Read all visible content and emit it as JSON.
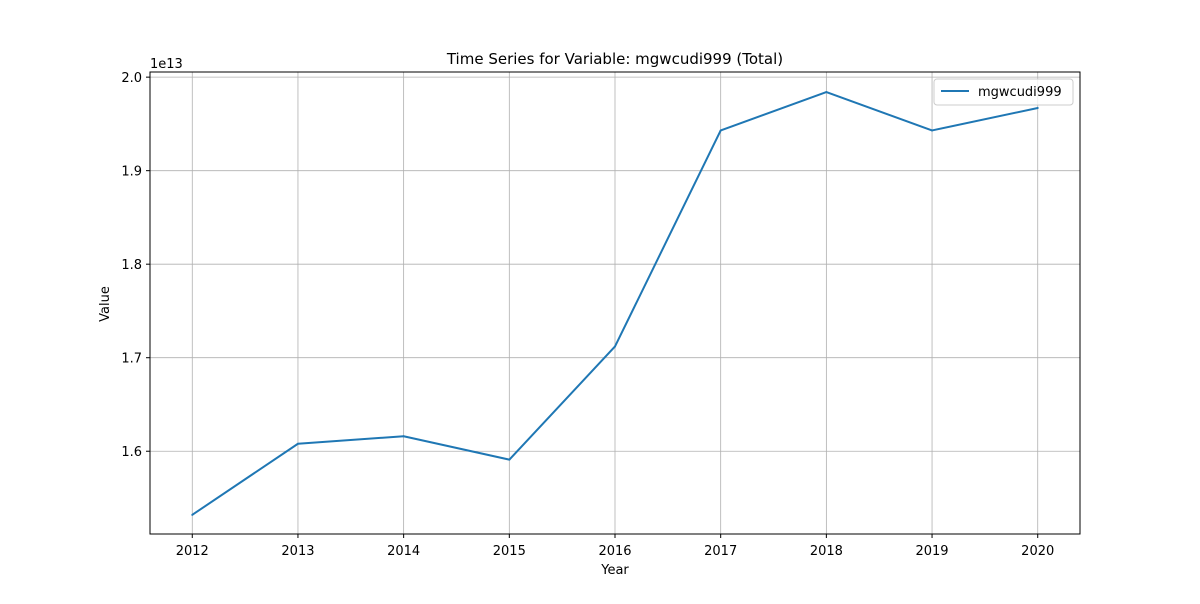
{
  "chart_data": {
    "type": "line",
    "title": "Time Series for Variable: mgwcudi999 (Total)",
    "xlabel": "Year",
    "ylabel": "Value",
    "y_scale_label": "1e13",
    "x": [
      2012,
      2013,
      2014,
      2015,
      2016,
      2017,
      2018,
      2019,
      2020
    ],
    "x_tick_labels": [
      "2012",
      "2013",
      "2014",
      "2015",
      "2016",
      "2017",
      "2018",
      "2019",
      "2020"
    ],
    "y_tick_values": [
      1.6,
      1.7,
      1.8,
      1.9,
      2.0
    ],
    "y_tick_labels": [
      "1.6",
      "1.7",
      "1.8",
      "1.9",
      "2.0"
    ],
    "series": [
      {
        "name": "mgwcudi999",
        "color": "#1f77b4",
        "values": [
          1.532,
          1.608,
          1.616,
          1.591,
          1.712,
          1.943,
          1.984,
          1.943,
          1.967
        ]
      }
    ],
    "xlim": [
      2011.6,
      2020.4
    ],
    "ylim": [
      1.5115,
      2.0055
    ],
    "grid": true,
    "legend_position": "top-right"
  }
}
